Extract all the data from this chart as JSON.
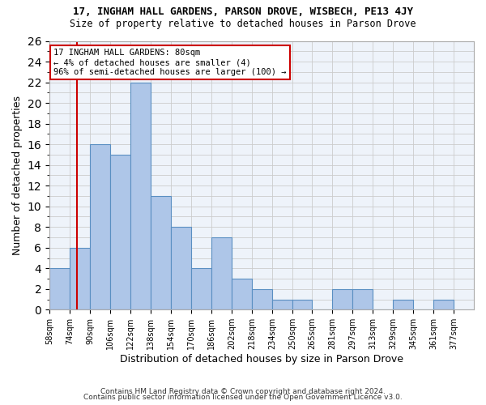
{
  "title": "17, INGHAM HALL GARDENS, PARSON DROVE, WISBECH, PE13 4JY",
  "subtitle": "Size of property relative to detached houses in Parson Drove",
  "xlabel": "Distribution of detached houses by size in Parson Drove",
  "ylabel": "Number of detached properties",
  "bin_edges": [
    58,
    74,
    90,
    106,
    122,
    138,
    154,
    170,
    186,
    202,
    218,
    234,
    250,
    265,
    281,
    297,
    313,
    329,
    345,
    361,
    377
  ],
  "bar_heights": [
    4,
    6,
    16,
    15,
    22,
    11,
    8,
    4,
    7,
    3,
    2,
    1,
    1,
    0,
    2,
    2,
    0,
    1,
    0,
    1
  ],
  "bar_color": "#aec6e8",
  "bar_edge_color": "#5a8fc2",
  "bar_edge_width": 0.8,
  "grid_color": "#cccccc",
  "bg_color": "#eef3fa",
  "red_line_x": 80,
  "red_line_color": "#cc0000",
  "annotation_text": "17 INGHAM HALL GARDENS: 80sqm\n← 4% of detached houses are smaller (4)\n96% of semi-detached houses are larger (100) →",
  "annotation_box_color": "#ffffff",
  "annotation_box_edge": "#cc0000",
  "ylim": [
    0,
    26
  ],
  "yticks": [
    0,
    2,
    4,
    6,
    8,
    10,
    12,
    14,
    16,
    18,
    20,
    22,
    24,
    26
  ],
  "footnote1": "Contains HM Land Registry data © Crown copyright and database right 2024.",
  "footnote2": "Contains public sector information licensed under the Open Government Licence v3.0.",
  "tick_labels": [
    "58sqm",
    "74sqm",
    "90sqm",
    "106sqm",
    "122sqm",
    "138sqm",
    "154sqm",
    "170sqm",
    "186sqm",
    "202sqm",
    "218sqm",
    "234sqm",
    "250sqm",
    "265sqm",
    "281sqm",
    "297sqm",
    "313sqm",
    "329sqm",
    "345sqm",
    "361sqm",
    "377sqm"
  ]
}
